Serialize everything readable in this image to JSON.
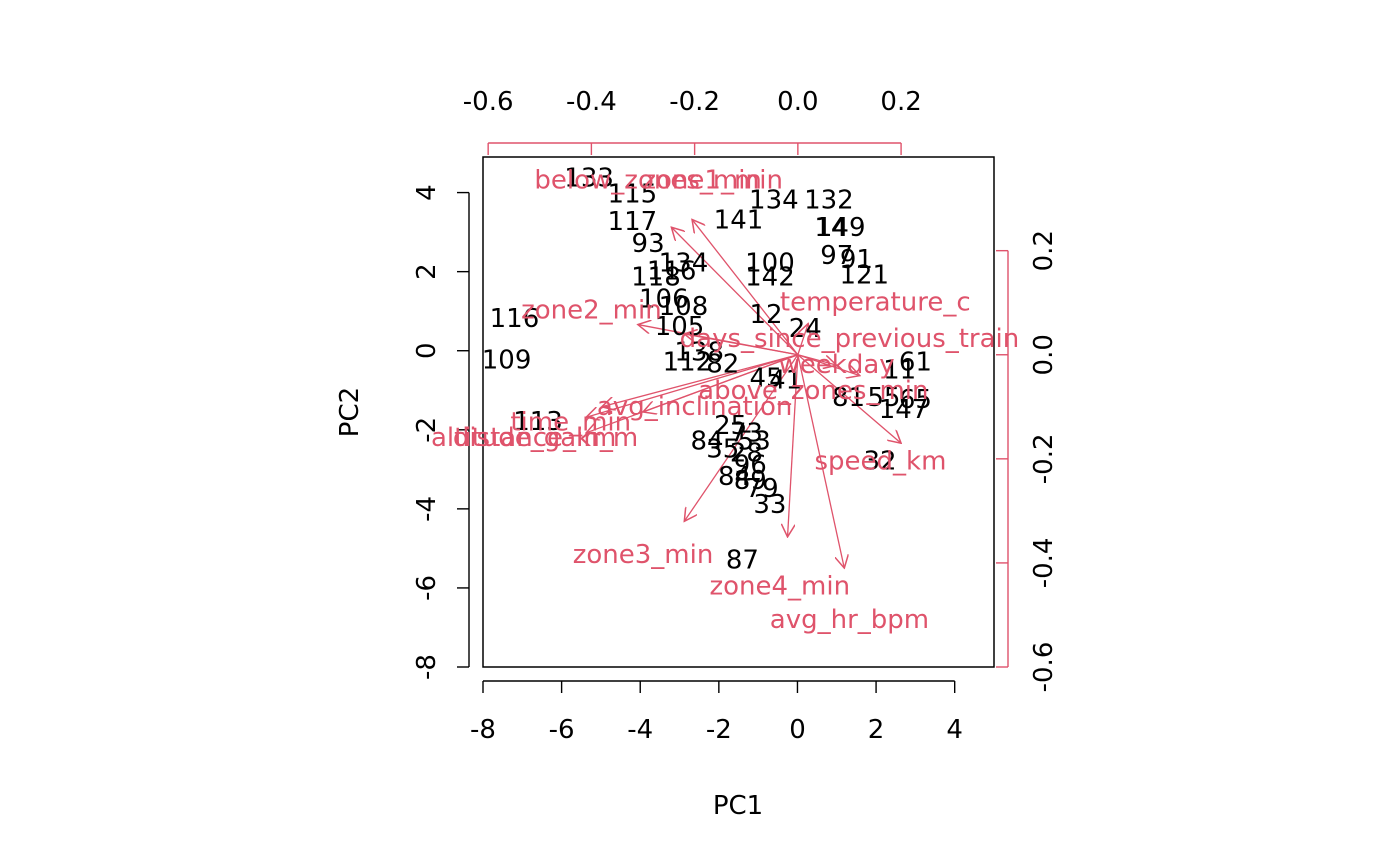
{
  "chart_data": {
    "type": "scatter",
    "title": "",
    "xlabel": "PC1",
    "ylabel": "PC2",
    "xlim": [
      -8,
      5
    ],
    "ylim": [
      -8,
      4.9
    ],
    "xticks": [
      "-8",
      "-6",
      "-4",
      "-2",
      "0",
      "2",
      "4"
    ],
    "yticks": [
      "-8",
      "-6",
      "-4",
      "-2",
      "0",
      "2",
      "4"
    ],
    "loadings_xlim": [
      -0.61,
      0.38
    ],
    "loadings_ylim": [
      -0.6,
      0.38
    ],
    "top_ticks": [
      "-0.6",
      "-0.4",
      "-0.2",
      "0.0",
      "0.2"
    ],
    "right_ticks": [
      "-0.6",
      "-0.4",
      "-0.2",
      "0.0",
      "0.2"
    ],
    "colors": {
      "observations": "#000000",
      "loadings": "#DF536B",
      "axes": "#000000"
    },
    "observations": [
      {
        "label": "133",
        "x": -5.3,
        "y": 4.35
      },
      {
        "label": "115",
        "x": -4.2,
        "y": 3.95
      },
      {
        "label": "134",
        "x": -0.6,
        "y": 3.8
      },
      {
        "label": "132",
        "x": 0.8,
        "y": 3.8
      },
      {
        "label": "141",
        "x": -1.5,
        "y": 3.3
      },
      {
        "label": "117",
        "x": -4.2,
        "y": 3.25
      },
      {
        "label": "149",
        "x": 1.1,
        "y": 3.1
      },
      {
        "label": "14",
        "x": 0.85,
        "y": 3.1
      },
      {
        "label": "93",
        "x": -3.8,
        "y": 2.7
      },
      {
        "label": "97",
        "x": 1.0,
        "y": 2.4
      },
      {
        "label": "91",
        "x": 1.5,
        "y": 2.3
      },
      {
        "label": "100",
        "x": -0.7,
        "y": 2.2
      },
      {
        "label": "134",
        "x": -2.9,
        "y": 2.2
      },
      {
        "label": "116",
        "x": -3.2,
        "y": 2.0
      },
      {
        "label": "118",
        "x": -3.6,
        "y": 1.85
      },
      {
        "label": "142",
        "x": -0.7,
        "y": 1.85
      },
      {
        "label": "121",
        "x": 1.7,
        "y": 1.9
      },
      {
        "label": "106",
        "x": -3.4,
        "y": 1.3
      },
      {
        "label": "108",
        "x": -2.9,
        "y": 1.1
      },
      {
        "label": "12",
        "x": -0.8,
        "y": 0.9
      },
      {
        "label": "116",
        "x": -7.2,
        "y": 0.8
      },
      {
        "label": "105",
        "x": -3.0,
        "y": 0.6
      },
      {
        "label": "24",
        "x": 0.2,
        "y": 0.55
      },
      {
        "label": "138",
        "x": -2.5,
        "y": -0.05
      },
      {
        "label": "109",
        "x": -7.4,
        "y": -0.25
      },
      {
        "label": "112",
        "x": -2.8,
        "y": -0.3
      },
      {
        "label": "82",
        "x": -1.9,
        "y": -0.35
      },
      {
        "label": "61",
        "x": 3.0,
        "y": -0.3
      },
      {
        "label": "11",
        "x": 2.6,
        "y": -0.5
      },
      {
        "label": "41",
        "x": -0.3,
        "y": -0.75
      },
      {
        "label": "45",
        "x": -0.8,
        "y": -0.7
      },
      {
        "label": "81",
        "x": 1.3,
        "y": -1.2
      },
      {
        "label": "55",
        "x": 2.2,
        "y": -1.2
      },
      {
        "label": "65",
        "x": 3.0,
        "y": -1.25
      },
      {
        "label": "147",
        "x": 2.7,
        "y": -1.5
      },
      {
        "label": "113",
        "x": -6.6,
        "y": -1.8
      },
      {
        "label": "25",
        "x": -1.7,
        "y": -1.9
      },
      {
        "label": "73",
        "x": -1.3,
        "y": -2.1
      },
      {
        "label": "84",
        "x": -2.3,
        "y": -2.3
      },
      {
        "label": "53",
        "x": -1.1,
        "y": -2.3
      },
      {
        "label": "35",
        "x": -1.9,
        "y": -2.5
      },
      {
        "label": "28",
        "x": -1.3,
        "y": -2.6
      },
      {
        "label": "32",
        "x": 2.1,
        "y": -2.8
      },
      {
        "label": "96",
        "x": -1.2,
        "y": -2.9
      },
      {
        "label": "84",
        "x": -1.6,
        "y": -3.2
      },
      {
        "label": "89",
        "x": -1.2,
        "y": -3.3
      },
      {
        "label": "79",
        "x": -0.9,
        "y": -3.5
      },
      {
        "label": "33",
        "x": -0.7,
        "y": -3.9
      },
      {
        "label": "87",
        "x": -1.4,
        "y": -5.3
      }
    ],
    "loadings": [
      {
        "name": "below_zones_min",
        "x": -0.245,
        "y": 0.245,
        "lx": -0.29,
        "ly": 0.335
      },
      {
        "name": "zone1_min",
        "x": -0.205,
        "y": 0.26,
        "lx": -0.165,
        "ly": 0.335
      },
      {
        "name": "temperature_c",
        "x": 0.02,
        "y": 0.06,
        "lx": 0.15,
        "ly": 0.1
      },
      {
        "name": "zone2_min",
        "x": -0.31,
        "y": 0.058,
        "lx": -0.4,
        "ly": 0.085
      },
      {
        "name": "days_since_previous_train",
        "x": -0.22,
        "y": 0.04,
        "lx": 0.1,
        "ly": 0.03
      },
      {
        "name": "weekday",
        "x": 0.075,
        "y": -0.02,
        "lx": 0.075,
        "ly": -0.02
      },
      {
        "name": "above_zones_min",
        "x": 0.12,
        "y": -0.04,
        "lx": 0.03,
        "ly": -0.07
      },
      {
        "name": "avg_inclination",
        "x": -0.3,
        "y": -0.11,
        "lx": -0.2,
        "ly": -0.1
      },
      {
        "name": "time_min",
        "x": -0.38,
        "y": -0.1,
        "lx": -0.44,
        "ly": -0.13
      },
      {
        "name": "altitude_gain_m",
        "x": -0.41,
        "y": -0.12,
        "lx": -0.51,
        "ly": -0.16
      },
      {
        "name": "distance_km",
        "x": -0.41,
        "y": -0.15,
        "lx": -0.51,
        "ly": -0.16
      },
      {
        "name": "speed_km",
        "x": 0.2,
        "y": -0.17,
        "lx": 0.16,
        "ly": -0.205
      },
      {
        "name": "zone3_min",
        "x": -0.22,
        "y": -0.32,
        "lx": -0.3,
        "ly": -0.385
      },
      {
        "name": "zone4_min",
        "x": -0.02,
        "y": -0.35,
        "lx": -0.035,
        "ly": -0.445
      },
      {
        "name": "avg_hr_bpm",
        "x": 0.09,
        "y": -0.41,
        "lx": 0.1,
        "ly": -0.51
      }
    ]
  }
}
